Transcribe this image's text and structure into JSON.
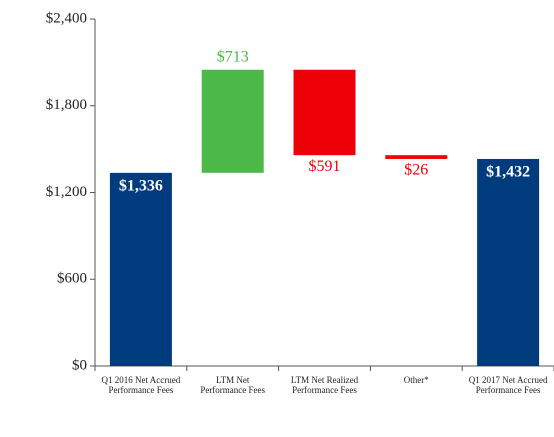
{
  "chart_data": {
    "type": "waterfall",
    "categories": [
      "Q1 2016 Net Accrued Performance Fees",
      "LTM Net Performance Fees",
      "LTM Net Realized Performance Fees",
      "Other*",
      "Q1 2017 Net Accrued Performance Fees"
    ],
    "values": [
      1336,
      713,
      -591,
      -26,
      1432
    ],
    "value_labels": [
      "$1,336",
      "$713",
      "$591",
      "$26",
      "$1,432"
    ],
    "measures": [
      "absolute",
      "relative",
      "relative",
      "relative",
      "total"
    ],
    "colors": {
      "total": "#003b7e",
      "increase": "#4cb849",
      "decrease": "#ee0008"
    },
    "ylim": [
      0,
      2400
    ],
    "yticks": [
      {
        "value": 0,
        "label": "$0"
      },
      {
        "value": 600,
        "label": "$600"
      },
      {
        "value": 1200,
        "label": "$1,200"
      },
      {
        "value": 1800,
        "label": "$1,800"
      },
      {
        "value": 2400,
        "label": "$2,400"
      }
    ]
  }
}
